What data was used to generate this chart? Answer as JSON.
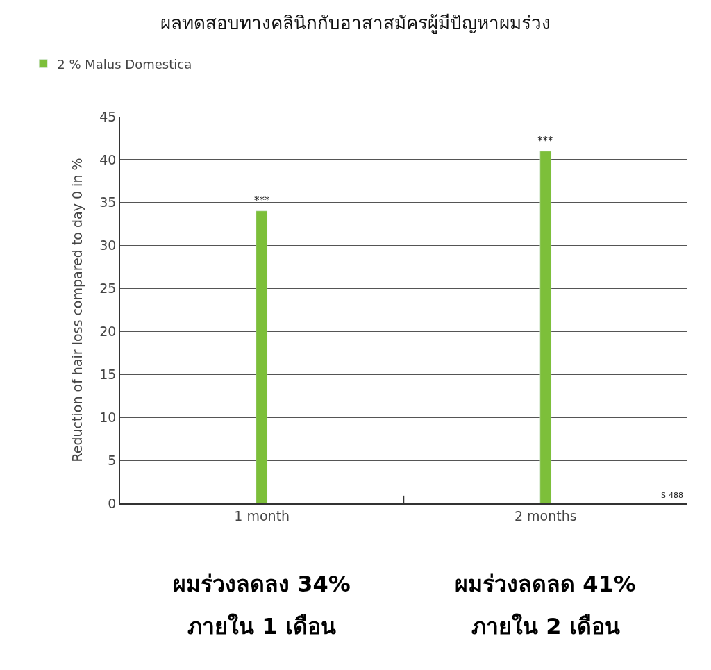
{
  "chart_data": {
    "type": "bar",
    "title": "ผลทดสอบทางคลินิกกับอาสาสมัครผู้มีปัญหาผมร่วง",
    "ylabel": "Reduction of hair loss compared to day 0 in %",
    "categories": [
      "1 month",
      "2 months"
    ],
    "series": [
      {
        "name": "2 % Malus Domestica",
        "color": "#7dbf3a",
        "values": [
          34,
          41
        ]
      }
    ],
    "ylim": [
      0,
      45
    ],
    "yticks": [
      0,
      5,
      10,
      15,
      20,
      25,
      30,
      35,
      40,
      45
    ],
    "grid": "y",
    "legend": "top left",
    "annotations": [
      {
        "text": "***",
        "x": "1 month",
        "y": 34
      },
      {
        "text": "***",
        "x": "2 months",
        "y": 41
      },
      "S-488",
      "ผมร่วงลดลง 34%",
      "ภายใน 1 เดือน",
      "ผมร่วงลดลด 41%",
      "ภายใน 2 เดือน"
    ]
  }
}
